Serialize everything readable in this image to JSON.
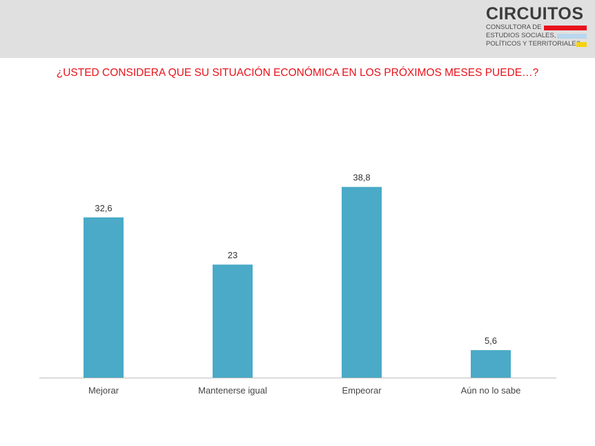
{
  "header": {
    "logo": {
      "title": "CIRCUITOS",
      "line1": "CONSULTORA DE",
      "line2": "ESTUDIOS SOCIALES,",
      "line3": "POLÍTICOS Y TERRITORIALES"
    },
    "question": "¿USTED CONSIDERA QUE SU SITUACIÓN ECONÓMICA EN LOS PRÓXIMOS MESES PUEDE…?"
  },
  "colors": {
    "bar": "#4aaac7",
    "question": "#e8121b",
    "stripe_red": "#e8121b",
    "stripe_blue": "#b9d7ee",
    "stripe_yellow": "#f5d20e"
  },
  "chart_data": {
    "type": "bar",
    "title": "¿USTED CONSIDERA QUE SU SITUACIÓN ECONÓMICA EN LOS PRÓXIMOS MESES PUEDE…?",
    "categories": [
      "Mejorar",
      "Mantenerse igual",
      "Empeorar",
      "Aún no lo sabe"
    ],
    "values": [
      32.6,
      23,
      38.8,
      5.6
    ],
    "value_labels": [
      "32,6",
      "23",
      "38,8",
      "5,6"
    ],
    "xlabel": "",
    "ylabel": "",
    "ylim": [
      0,
      45
    ],
    "grid": false,
    "legend": "none"
  }
}
